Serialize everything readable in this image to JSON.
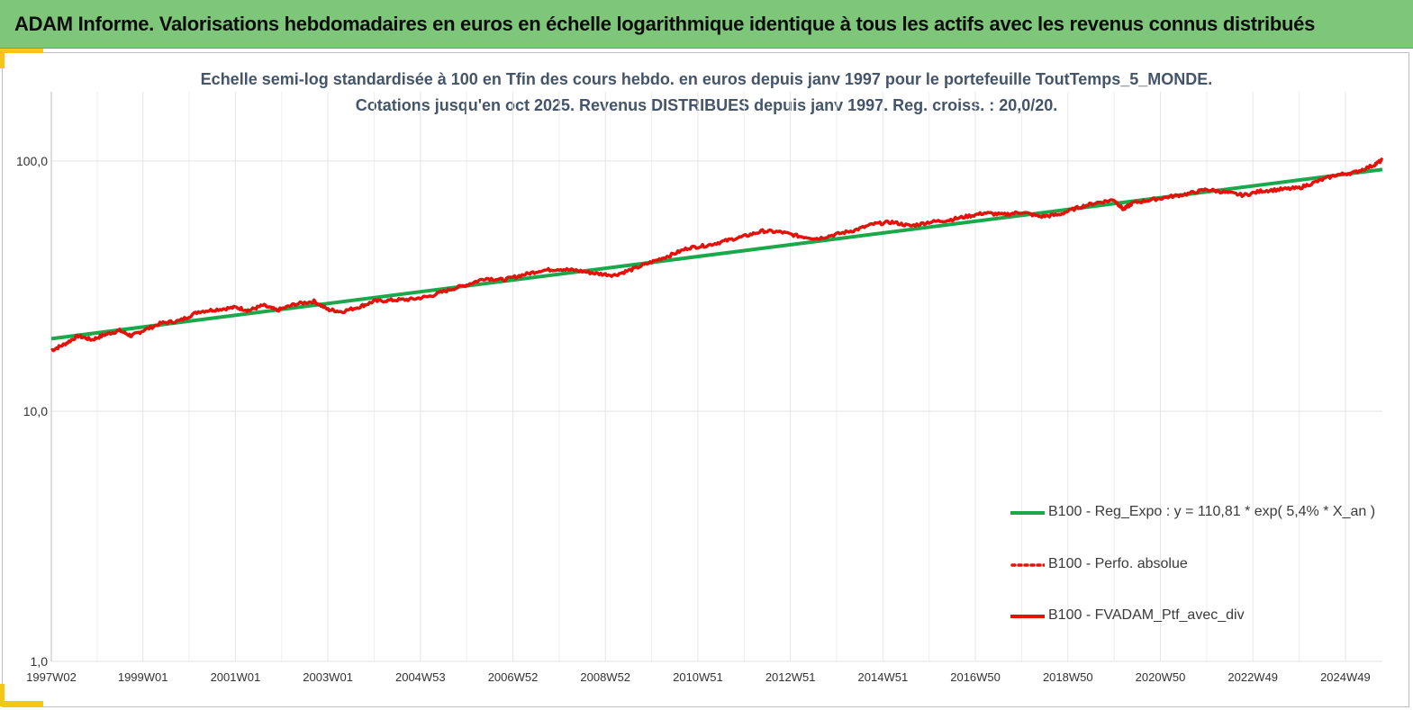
{
  "header": {
    "title": "ADAM Informe. Valorisations hebdomadaires en euros en échelle logarithmique identique à tous les actifs avec les revenus connus distribués"
  },
  "colors": {
    "banner": "#7dc67a",
    "accent_corner": "#f5c518",
    "regression": "#1aa84b",
    "portfolio": "#e3120b",
    "subtitle": "#44546a"
  },
  "chart_data": {
    "type": "line",
    "title_line1": "Echelle semi-log standardisée à 100 en Tfin des cours hebdo.  en euros depuis janv 1997 pour le portefeuille ToutTemps_5_MONDE.",
    "title_line2": "Cotations jusqu'en oct 2025. Revenus DISTRIBUES depuis janv 1997. Reg. croiss. : 20,0/20.",
    "y_scale": "log",
    "ylim": [
      1,
      150
    ],
    "y_ticks": [
      {
        "value": 1,
        "label": "1,0"
      },
      {
        "value": 10,
        "label": "10,0"
      },
      {
        "value": 100,
        "label": "100,0"
      }
    ],
    "xlim": [
      1997.02,
      2025.8
    ],
    "x_ticks": [
      {
        "year": 1997.02,
        "label": "1997W02"
      },
      {
        "year": 1999.0,
        "label": "1999W01"
      },
      {
        "year": 2001.0,
        "label": "2001W01"
      },
      {
        "year": 2003.0,
        "label": "2003W01"
      },
      {
        "year": 2005.0,
        "label": "2004W53"
      },
      {
        "year": 2007.0,
        "label": "2006W52"
      },
      {
        "year": 2009.0,
        "label": "2008W52"
      },
      {
        "year": 2011.0,
        "label": "2010W51"
      },
      {
        "year": 2013.0,
        "label": "2012W51"
      },
      {
        "year": 2015.0,
        "label": "2014W51"
      },
      {
        "year": 2017.0,
        "label": "2016W50"
      },
      {
        "year": 2019.0,
        "label": "2018W50"
      },
      {
        "year": 2021.0,
        "label": "2020W50"
      },
      {
        "year": 2023.0,
        "label": "2022W49"
      },
      {
        "year": 2025.0,
        "label": "2024W49"
      }
    ],
    "grid": {
      "vertical": true,
      "horizontal": true
    },
    "legend_position": "bottom-right",
    "series": [
      {
        "name": "B100 - Reg_Expo : y = 110,81 * exp( 5,4% *  X_an )",
        "style": "solid",
        "color": "#1aa84b",
        "x": [
          1997.02,
          2025.8
        ],
        "y": [
          19.5,
          92.5
        ]
      },
      {
        "name": "B100 - Perfo. absolue",
        "style": "dotted",
        "color": "#e3120b",
        "x": [],
        "y": []
      },
      {
        "name": "B100 - FVADAM_Ptf_avec_div",
        "style": "solid",
        "color": "#e3120b",
        "x": [
          1997.02,
          1997.3,
          1997.6,
          1997.9,
          1998.2,
          1998.5,
          1998.75,
          1999.0,
          1999.4,
          1999.8,
          2000.2,
          2000.6,
          2001.0,
          2001.3,
          2001.6,
          2001.9,
          2002.3,
          2002.7,
          2003.0,
          2003.3,
          2003.7,
          2004.0,
          2004.4,
          2004.8,
          2005.2,
          2005.6,
          2006.0,
          2006.4,
          2006.8,
          2007.2,
          2007.6,
          2008.0,
          2008.4,
          2008.8,
          2009.2,
          2009.6,
          2010.0,
          2010.4,
          2010.8,
          2011.2,
          2011.6,
          2012.0,
          2012.4,
          2012.8,
          2013.2,
          2013.6,
          2014.0,
          2014.4,
          2014.8,
          2015.2,
          2015.6,
          2016.0,
          2016.4,
          2016.8,
          2017.2,
          2017.6,
          2018.0,
          2018.4,
          2018.8,
          2019.2,
          2019.6,
          2020.0,
          2020.2,
          2020.4,
          2020.8,
          2021.2,
          2021.6,
          2022.0,
          2022.4,
          2022.8,
          2023.2,
          2023.6,
          2024.0,
          2024.4,
          2024.8,
          2025.2,
          2025.6,
          2025.8
        ],
        "y": [
          17.5,
          18.5,
          20.0,
          19.3,
          20.3,
          21.0,
          20.0,
          21.0,
          22.5,
          23.0,
          25.0,
          25.5,
          26.0,
          25.3,
          26.5,
          25.3,
          26.8,
          27.5,
          25.5,
          25.0,
          26.2,
          27.5,
          27.8,
          28.0,
          28.8,
          30.5,
          32.0,
          34.0,
          33.5,
          35.0,
          36.5,
          37.0,
          36.5,
          35.5,
          35.0,
          37.0,
          39.5,
          42.0,
          45.0,
          46.0,
          48.0,
          50.0,
          52.5,
          52.0,
          50.0,
          49.0,
          51.0,
          53.0,
          56.0,
          57.0,
          55.0,
          57.0,
          58.0,
          60.0,
          62.0,
          61.0,
          62.5,
          60.0,
          61.0,
          65.0,
          68.0,
          70.0,
          64.0,
          68.0,
          70.0,
          72.0,
          74.0,
          77.0,
          75.0,
          73.0,
          76.0,
          77.0,
          78.0,
          83.0,
          88.0,
          90.0,
          96.0,
          101.0
        ]
      }
    ]
  }
}
